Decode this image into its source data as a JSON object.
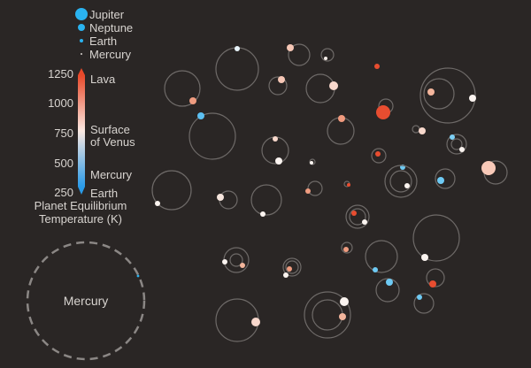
{
  "chart_data": {
    "type": "scatter",
    "title": "",
    "size_legend": {
      "entries": [
        {
          "label": "Jupiter",
          "radius_earth": 11.2
        },
        {
          "label": "Neptune",
          "radius_earth": 3.9
        },
        {
          "label": "Earth",
          "radius_earth": 1.0
        },
        {
          "label": "Mercury",
          "radius_earth": 0.38
        }
      ]
    },
    "color_scale": {
      "title_line1": "Planet Equilibrium",
      "title_line2": "Temperature (K)",
      "ticks": [
        "1250",
        "1000",
        "750",
        "500",
        "250"
      ],
      "range": [
        250,
        1250
      ],
      "colors": {
        "hot": "#e8492a",
        "mid": "#fbe9e2",
        "cold": "#2a9be8"
      },
      "markers": [
        {
          "label": "Lava",
          "value": 1200
        },
        {
          "label_line1": "Surface",
          "label_line2": "of Venus",
          "value": 740
        },
        {
          "label": "Mercury",
          "value": 440
        },
        {
          "label": "Earth",
          "value": 255
        }
      ]
    },
    "reference_orbit": {
      "label": "Mercury"
    },
    "accent_colors": {
      "background": "#2a2625",
      "orbit": "#6e6a68",
      "reference": "#8b8785"
    }
  }
}
